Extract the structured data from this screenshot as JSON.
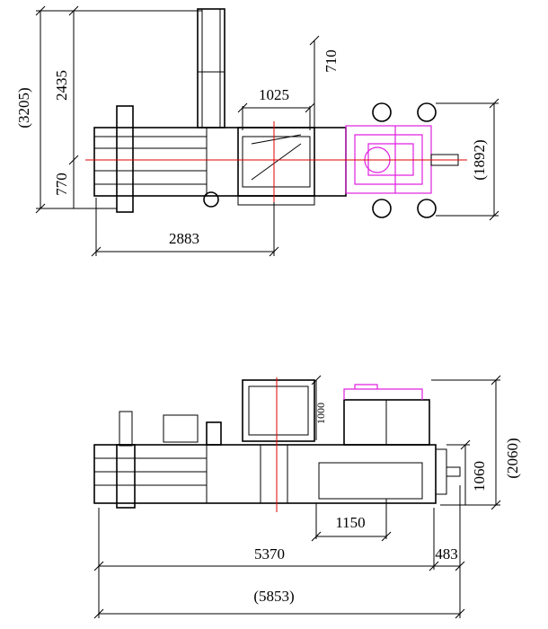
{
  "top_view": {
    "overall_length_height": "(3205)",
    "cylinder_length": "2435",
    "center_offset": "770",
    "hopper_width": "1025",
    "power_unit_offset": "710",
    "power_unit_width": "(1892)",
    "body_length": "2883"
  },
  "side_view": {
    "hopper_height": "1000",
    "overall_height": "(2060)",
    "body_height": "1060",
    "chamber_length": "1150",
    "machine_length": "5370",
    "extension_length": "483",
    "overall_length": "(5853)"
  }
}
